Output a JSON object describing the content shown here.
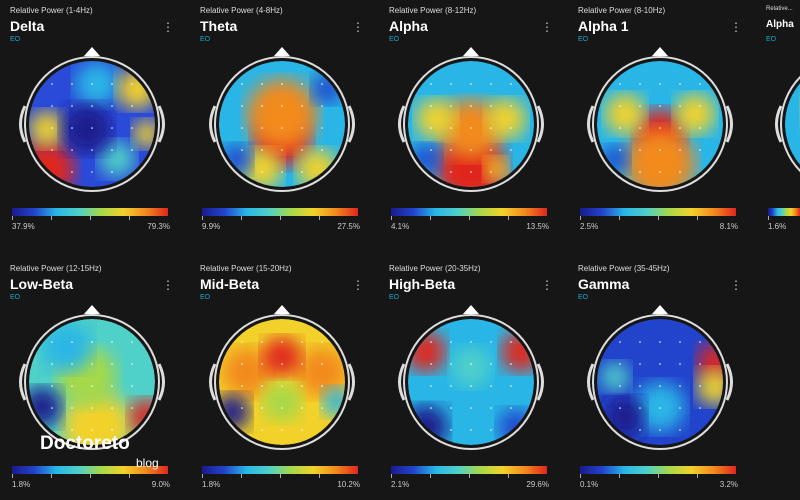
{
  "cards": [
    {
      "subtitle": "Relative Power (1-4Hz)",
      "title": "Delta",
      "condition": "EO",
      "min": "37.9%",
      "max": "79.3%"
    },
    {
      "subtitle": "Relative Power (4-8Hz)",
      "title": "Theta",
      "condition": "EO",
      "min": "9.9%",
      "max": "27.5%"
    },
    {
      "subtitle": "Relative Power (8-12Hz)",
      "title": "Alpha",
      "condition": "EO",
      "min": "4.1%",
      "max": "13.5%"
    },
    {
      "subtitle": "Relative Power (8-10Hz)",
      "title": "Alpha 1",
      "condition": "EO",
      "min": "2.5%",
      "max": "8.1%"
    },
    {
      "subtitle": "Relative...",
      "title": "Alpha",
      "condition": "EO",
      "min": "1.6%",
      "max": ""
    },
    {
      "subtitle": "Relative Power (12-15Hz)",
      "title": "Low-Beta",
      "condition": "EO",
      "min": "1.8%",
      "max": "9.0%"
    },
    {
      "subtitle": "Relative Power (15-20Hz)",
      "title": "Mid-Beta",
      "condition": "EO",
      "min": "1.8%",
      "max": "10.2%"
    },
    {
      "subtitle": "Relative Power (20-35Hz)",
      "title": "High-Beta",
      "condition": "EO",
      "min": "2.1%",
      "max": "29.6%"
    },
    {
      "subtitle": "Relative Power (35-45Hz)",
      "title": "Gamma",
      "condition": "EO",
      "min": "0.1%",
      "max": "3.2%"
    }
  ],
  "menu_icon": "more-vert-icon",
  "watermark": {
    "brand": "Doctoreto",
    "sub": "blog"
  }
}
